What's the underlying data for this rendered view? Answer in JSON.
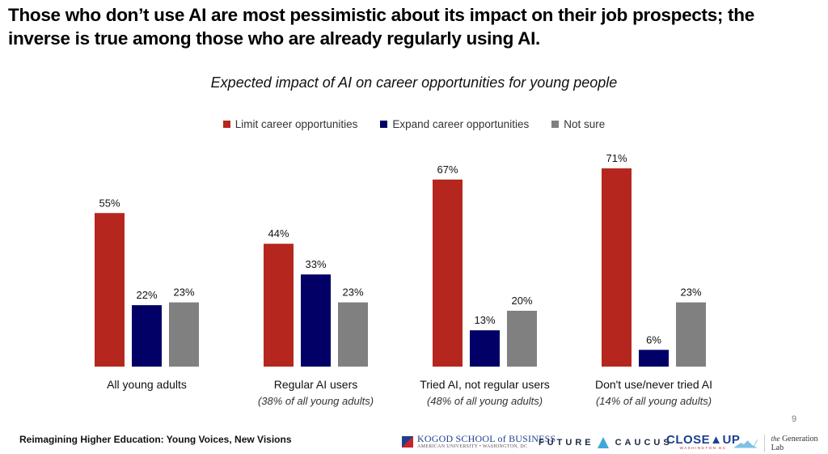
{
  "headline": "Those who don’t use AI are most pessimistic about its impact on their job prospects; the inverse is true among those who are already regularly using AI.",
  "chart_data": {
    "type": "bar",
    "title": "Expected impact of AI on career opportunities for young people",
    "xlabel": "",
    "ylabel": "",
    "ylim": [
      0,
      75
    ],
    "grid": false,
    "legend_position": "top-center",
    "categories": [
      "All young adults",
      "Regular AI users",
      "Tried AI, not regular users",
      "Don't use/never tried AI"
    ],
    "category_notes": [
      "",
      "(38% of all young adults)",
      "(48% of all young adults)",
      "(14% of all young adults)"
    ],
    "series": [
      {
        "name": "Limit career opportunities",
        "color": "#B5271E",
        "values": [
          55,
          44,
          67,
          71
        ],
        "labels": [
          "55%",
          "44%",
          "67%",
          "71%"
        ]
      },
      {
        "name": "Expand career opportunities",
        "color": "#020066",
        "values": [
          22,
          33,
          13,
          6
        ],
        "labels": [
          "22%",
          "33%",
          "13%",
          "6%"
        ]
      },
      {
        "name": "Not sure",
        "color": "#808080",
        "values": [
          23,
          23,
          20,
          23
        ],
        "labels": [
          "23%",
          "23%",
          "20%",
          "23%"
        ]
      }
    ]
  },
  "footer": {
    "title": "Reimagining Higher Education: Young Voices, New Visions",
    "page_number": "9",
    "logos": {
      "kogod_main": "KOGOD SCHOOL of BUSINESS",
      "kogod_sub": "AMERICAN UNIVERSITY • WASHINGTON, DC",
      "future": "FUTURE",
      "caucus": "CAUCUS",
      "closeup_main": "CLOSE▲UP",
      "closeup_sub": "WASHINGTON DC",
      "genlab_prefix": "the",
      "genlab": "Generation Lab"
    }
  }
}
